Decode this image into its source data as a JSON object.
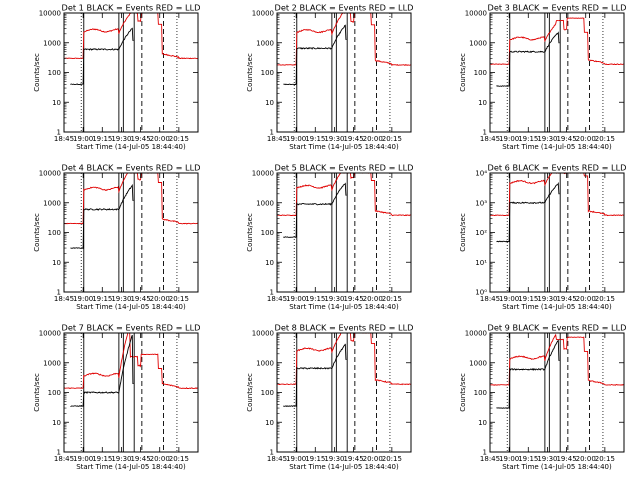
{
  "chart_data": {
    "type": "line",
    "yscale": "log",
    "ylim": [
      1,
      10000
    ],
    "ytick_labels_decimal": [
      "1",
      "10",
      "100",
      "1000",
      "10000"
    ],
    "ytick_labels_power": [
      "10⁰",
      "10¹",
      "10²",
      "10³",
      "10⁴"
    ],
    "xlim_minutes": [
      0,
      105
    ],
    "xtick_labels": [
      "18:45",
      "19:00",
      "19:15",
      "19:30",
      "19:45",
      "20:00",
      "20:15"
    ],
    "xtick_minutes": [
      0,
      15,
      30,
      45,
      60,
      75,
      90
    ],
    "xlabel": "Start Time (14-Jul-05 18:44:40)",
    "ylabel": "Counts/sec",
    "markers": {
      "solid": [
        15.5,
        43,
        46.5,
        55
      ],
      "dashed": [
        61,
        78
      ],
      "dotted": [
        13.5,
        88.5
      ]
    },
    "legend_text": {
      "title_prefix": "Det ",
      "black": "BLACK = Events",
      "red": "RED = LLD"
    },
    "colors": {
      "events": "#000000",
      "lld": "#e00000"
    },
    "panels": [
      {
        "title": "Det 1",
        "pre": 300,
        "lld": 2600,
        "evt": 600,
        "evt_pre": 40,
        "rise": 2.2
      },
      {
        "title": "Det 2",
        "pre": 180,
        "lld": 2500,
        "evt": 650,
        "evt_pre": 40,
        "rise": 2.4
      },
      {
        "title": "Det 3",
        "pre": 190,
        "lld": 1400,
        "evt": 500,
        "evt_pre": 35,
        "rise": 2.0
      },
      {
        "title": "Det 4",
        "pre": 200,
        "lld": 3000,
        "evt": 600,
        "evt_pre": 30,
        "rise": 2.5
      },
      {
        "title": "Det 5",
        "pre": 380,
        "lld": 3500,
        "evt": 900,
        "evt_pre": 70,
        "rise": 2.2
      },
      {
        "title": "Det 6",
        "pre": 380,
        "lld": 5000,
        "evt": 1000,
        "evt_pre": 50,
        "rise": 2.0,
        "power_labels": true
      },
      {
        "title": "Det 7",
        "pre": 140,
        "lld": 400,
        "evt": 100,
        "evt_pre": 35,
        "rise": 6.0
      },
      {
        "title": "Det 8",
        "pre": 190,
        "lld": 2800,
        "evt": 650,
        "evt_pre": 35,
        "rise": 2.5
      },
      {
        "title": "Det 9",
        "pre": 180,
        "lld": 1500,
        "evt": 600,
        "evt_pre": 30,
        "rise": 3.0
      }
    ]
  }
}
